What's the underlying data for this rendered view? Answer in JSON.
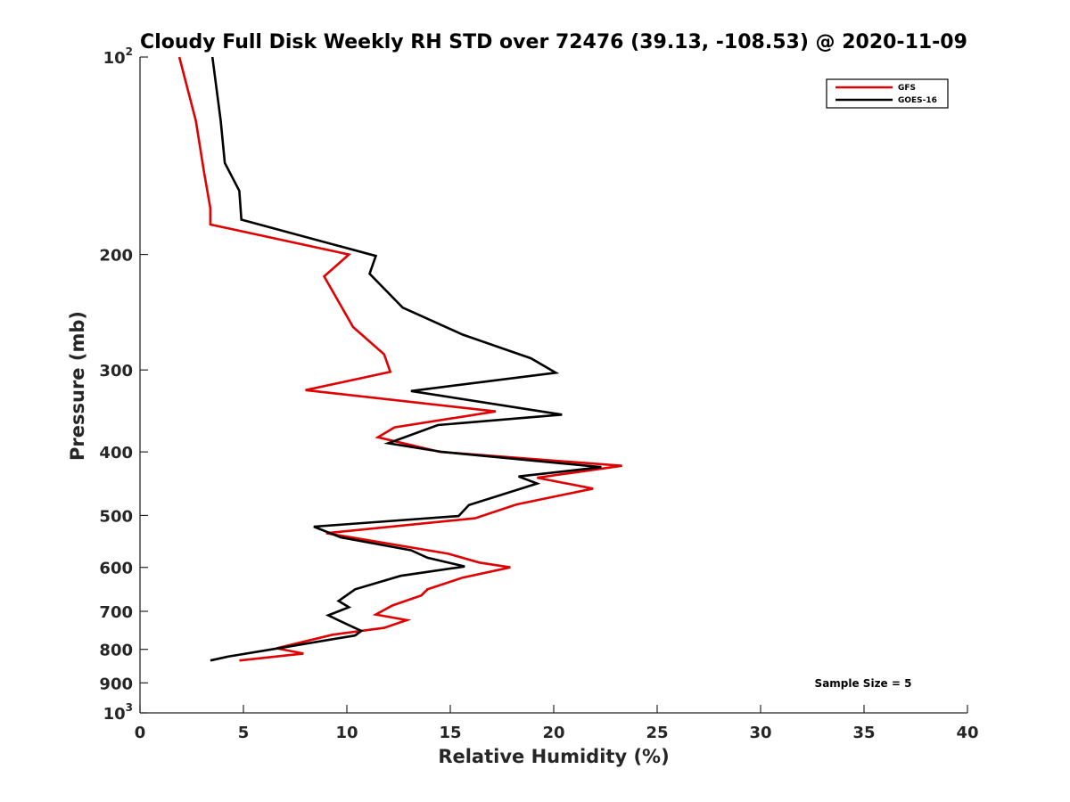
{
  "chart_data": {
    "type": "line",
    "title": "Cloudy Full Disk Weekly RH STD over 72476 (39.13, -108.53) @ 2020-11-09",
    "xlabel": "Relative Humidity (%)",
    "ylabel": "Pressure (mb)",
    "xlim": [
      0,
      40
    ],
    "ylim": [
      100,
      1000
    ],
    "yscale": "log",
    "y_reversed": true,
    "grid": false,
    "legend_location": "top-right",
    "x_ticks": [
      0,
      5,
      10,
      15,
      20,
      25,
      30,
      35,
      40
    ],
    "x_tick_labels": [
      "0",
      "5",
      "10",
      "15",
      "20",
      "25",
      "30",
      "35",
      "40"
    ],
    "y_ticks": [
      {
        "value": 100,
        "base": "10",
        "exp": "2"
      },
      {
        "value": 200,
        "label": "200"
      },
      {
        "value": 300,
        "label": "300"
      },
      {
        "value": 400,
        "label": "400"
      },
      {
        "value": 500,
        "label": "500"
      },
      {
        "value": 600,
        "label": "600"
      },
      {
        "value": 700,
        "label": "700"
      },
      {
        "value": 800,
        "label": "800"
      },
      {
        "value": 900,
        "label": "900"
      },
      {
        "value": 1000,
        "base": "10",
        "exp": "3"
      }
    ],
    "series": [
      {
        "name": "GFS",
        "color": "#e00000",
        "points": [
          [
            1.9,
            100
          ],
          [
            2.7,
            125
          ],
          [
            3.1,
            150
          ],
          [
            3.4,
            170
          ],
          [
            3.4,
            180
          ],
          [
            10.1,
            200
          ],
          [
            8.9,
            216
          ],
          [
            10.3,
            258
          ],
          [
            11.8,
            284
          ],
          [
            12.1,
            302
          ],
          [
            8.0,
            322
          ],
          [
            17.2,
            347
          ],
          [
            12.3,
            367
          ],
          [
            11.5,
            380
          ],
          [
            14.5,
            400
          ],
          [
            23.3,
            420
          ],
          [
            19.2,
            438
          ],
          [
            21.9,
            455
          ],
          [
            18.2,
            481
          ],
          [
            16.2,
            505
          ],
          [
            9.0,
            532
          ],
          [
            14.9,
            572
          ],
          [
            16.4,
            590
          ],
          [
            17.9,
            600
          ],
          [
            15.6,
            622
          ],
          [
            13.9,
            648
          ],
          [
            13.6,
            662
          ],
          [
            12.2,
            686
          ],
          [
            11.4,
            708
          ],
          [
            12.9,
            722
          ],
          [
            11.8,
            742
          ],
          [
            9.3,
            760
          ],
          [
            6.6,
            797
          ],
          [
            7.9,
            812
          ],
          [
            4.8,
            832
          ]
        ]
      },
      {
        "name": "GOES-16",
        "color": "#000000",
        "points": [
          [
            3.5,
            100
          ],
          [
            3.9,
            125
          ],
          [
            4.1,
            145
          ],
          [
            4.8,
            160
          ],
          [
            4.9,
            177
          ],
          [
            11.4,
            201
          ],
          [
            11.1,
            214
          ],
          [
            12.7,
            241
          ],
          [
            15.6,
            265
          ],
          [
            18.9,
            288
          ],
          [
            20.1,
            303
          ],
          [
            13.1,
            323
          ],
          [
            20.4,
            351
          ],
          [
            14.4,
            364
          ],
          [
            12.0,
            388
          ],
          [
            14.6,
            400
          ],
          [
            22.3,
            422
          ],
          [
            18.3,
            436
          ],
          [
            19.2,
            447
          ],
          [
            15.9,
            482
          ],
          [
            15.4,
            501
          ],
          [
            8.4,
            520
          ],
          [
            9.7,
            540
          ],
          [
            13.1,
            565
          ],
          [
            13.9,
            580
          ],
          [
            15.7,
            598
          ],
          [
            12.6,
            618
          ],
          [
            10.4,
            648
          ],
          [
            9.6,
            675
          ],
          [
            10.1,
            690
          ],
          [
            9.1,
            710
          ],
          [
            10.1,
            735
          ],
          [
            10.7,
            750
          ],
          [
            10.4,
            762
          ],
          [
            6.9,
            795
          ],
          [
            4.3,
            820
          ],
          [
            3.4,
            832
          ]
        ]
      }
    ],
    "annotations": [
      {
        "text": "Sample Size = 5",
        "location": "bottom-right"
      }
    ]
  }
}
